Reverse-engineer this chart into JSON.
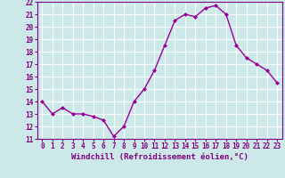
{
  "x": [
    0,
    1,
    2,
    3,
    4,
    5,
    6,
    7,
    8,
    9,
    10,
    11,
    12,
    13,
    14,
    15,
    16,
    17,
    18,
    19,
    20,
    21,
    22,
    23
  ],
  "y": [
    14.0,
    13.0,
    13.5,
    13.0,
    13.0,
    12.8,
    12.5,
    11.2,
    12.0,
    14.0,
    15.0,
    16.5,
    18.5,
    20.5,
    21.0,
    20.8,
    21.5,
    21.7,
    21.0,
    18.5,
    17.5,
    17.0,
    16.5,
    15.5
  ],
  "xlabel": "Windchill (Refroidissement éolien,°C)",
  "ylim": [
    11,
    22
  ],
  "yticks": [
    11,
    12,
    13,
    14,
    15,
    16,
    17,
    18,
    19,
    20,
    21,
    22
  ],
  "xticks": [
    0,
    1,
    2,
    3,
    4,
    5,
    6,
    7,
    8,
    9,
    10,
    11,
    12,
    13,
    14,
    15,
    16,
    17,
    18,
    19,
    20,
    21,
    22,
    23
  ],
  "line_color": "#990099",
  "marker": "D",
  "marker_size": 2,
  "bg_color": "#cce8e8",
  "grid_color": "#ffffff",
  "axis_label_color": "#800080",
  "tick_label_color": "#800080",
  "line_width": 1.0,
  "font_size_ticks": 5.5,
  "font_size_xlabel": 6.5
}
